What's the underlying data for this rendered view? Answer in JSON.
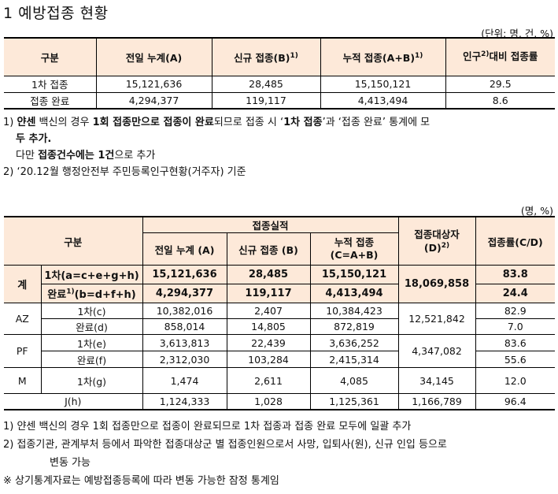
{
  "title": "1  예방접종 현황",
  "table1": {
    "unit": "(단위: 명, 건, %)",
    "headers": {
      "category": "구분",
      "prev_total": "전일 누계(A)",
      "new": "신규 접종(B)",
      "new_sup": "1)",
      "cumulative": "누적 접종(A+B)",
      "cumulative_sup": "1)",
      "ratio_pre": "인구",
      "ratio_sup": "2)",
      "ratio_post": "대비 접종률"
    },
    "rows": [
      {
        "category": "1차 접종",
        "prev_total": "15,121,636",
        "new": "28,485",
        "cumulative": "15,150,121",
        "ratio": "29.5"
      },
      {
        "category": "접종 완료",
        "prev_total": "4,294,377",
        "new": "119,117",
        "cumulative": "4,413,494",
        "ratio": "8.6"
      }
    ]
  },
  "notes1": {
    "n1_num": "1)",
    "n1_a": "얀센",
    "n1_b": " 백신",
    "n1_c": "의 경우 ",
    "n1_d": "1회 접종만으로 접종이 완료",
    "n1_e": "되므로 접종 시 ‘",
    "n1_f": "1차 접종",
    "n1_g": "’과 ‘접종 완료’ 통계에 모",
    "n1_line2": "두 추가.",
    "n1_line3_a": "다만 ",
    "n1_line3_b": "접종건수에는 1건",
    "n1_line3_c": "으로 추가",
    "n2": "2) ‘20.12월 행정안전부 주민등록인구현황(거주자) 기준"
  },
  "table2": {
    "unit": "(명, %)",
    "headers": {
      "category": "구분",
      "performance": "접종실적",
      "prev_total": "전일 누계 (A)",
      "new": "신규 접종 (B)",
      "cumulative_l1": "누적 접종",
      "cumulative_l2": "(C=A+B)",
      "target_l1": "접종대상자",
      "target_l2": "(D)",
      "target_sup": "2)",
      "rate": "접종률(C/D)"
    },
    "total": {
      "label": "계",
      "first_label": "1차(a=c+e+g+h)",
      "first_prev": "15,121,636",
      "first_new": "28,485",
      "first_cum": "15,150,121",
      "first_rate": "83.8",
      "complete_label_pre": "완료",
      "complete_sup": "1)",
      "complete_label_post": "(b=d+f+h)",
      "complete_prev": "4,294,377",
      "complete_new": "119,117",
      "complete_cum": "4,413,494",
      "complete_rate": "24.4",
      "target": "18,069,858"
    },
    "az": {
      "label": "AZ",
      "first_label": "1차(c)",
      "first_prev": "10,382,016",
      "first_new": "2,407",
      "first_cum": "10,384,423",
      "first_rate": "82.9",
      "complete_label": "완료(d)",
      "complete_prev": "858,014",
      "complete_new": "14,805",
      "complete_cum": "872,819",
      "complete_rate": "7.0",
      "target": "12,521,842"
    },
    "pf": {
      "label": "PF",
      "first_label": "1차(e)",
      "first_prev": "3,613,813",
      "first_new": "22,439",
      "first_cum": "3,636,252",
      "first_rate": "83.6",
      "complete_label": "완료(f)",
      "complete_prev": "2,312,030",
      "complete_new": "103,284",
      "complete_cum": "2,415,314",
      "complete_rate": "55.6",
      "target": "4,347,082"
    },
    "m": {
      "label": "M",
      "first_label": "1차(g)",
      "first_prev": "1,474",
      "first_new": "2,611",
      "first_cum": "4,085",
      "target": "34,145",
      "rate": "12.0"
    },
    "j": {
      "label": "J(h)",
      "prev": "1,124,333",
      "new": "1,028",
      "cum": "1,125,361",
      "target": "1,166,789",
      "rate": "96.4"
    }
  },
  "notes2": {
    "n1": "1) 얀센 백신의 경우 1회 접종만으로 접종이 완료되므로 1차 접종과 접종 완료 모두에 일괄 추가",
    "n2": "2) 접종기관, 관계부처 등에서 파악한 접종대상군 별 접종인원으로서 사망, 입퇴사(원), 신규 인입 등으로",
    "n2_cont": "변동 가능",
    "n3": "※ 상기통계자료는 예방접종등록에 따라 변동 가능한 잠정 통계임"
  }
}
